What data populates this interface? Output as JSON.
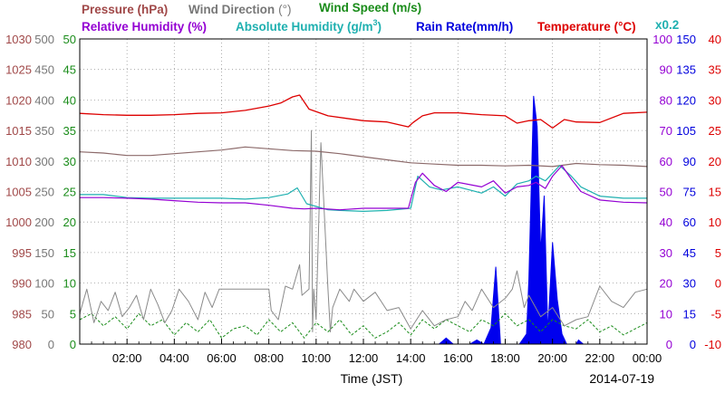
{
  "chart_data": {
    "type": "line",
    "date": "2014-07-19",
    "xlabel": "Time (JST)",
    "x_ticks": [
      "02:00",
      "04:00",
      "06:00",
      "08:00",
      "10:00",
      "12:00",
      "14:00",
      "16:00",
      "18:00",
      "20:00",
      "22:00",
      "00:00"
    ],
    "xlim_hours": [
      0,
      24
    ],
    "grid": true,
    "legend_placement": "top",
    "rain_scale_note": "x0.2",
    "legend": {
      "pressure": "Pressure (hPa)",
      "wind_dir": "Wind Direction",
      "wind_dir_unit": "(°)",
      "wind_speed": "Wind Speed (m/s)",
      "rh": "Relative Humidity (%)",
      "ah": "Absolute Humidity (g/m",
      "ah_sup": "3",
      "ah_close": ")",
      "rain": "Rain Rate(mm/h)",
      "temp": "Temperature (°C)"
    },
    "axes": {
      "pressure": {
        "min": 980,
        "max": 1030,
        "ticks": [
          "1030",
          "1025",
          "1020",
          "1015",
          "1010",
          "1005",
          "1000",
          "995",
          "990",
          "985",
          "980"
        ]
      },
      "wind_dir": {
        "min": 0,
        "max": 500,
        "ticks": [
          "500",
          "450",
          "400",
          "350",
          "300",
          "250",
          "200",
          "150",
          "100",
          "50",
          "0"
        ]
      },
      "wind_speed": {
        "min": 0,
        "max": 50,
        "ticks": [
          "50",
          "45",
          "40",
          "35",
          "30",
          "25",
          "20",
          "15",
          "10",
          "5",
          "0"
        ]
      },
      "rh": {
        "min": 0,
        "max": 100,
        "ticks": [
          "100",
          "90",
          "80",
          "70",
          "60",
          "50",
          "40",
          "30",
          "20",
          "10",
          "0"
        ]
      },
      "rain": {
        "min": 0,
        "max": 150,
        "ticks": [
          "150",
          "135",
          "120",
          "105",
          "90",
          "75",
          "60",
          "45",
          "30",
          "15",
          "0"
        ]
      },
      "temp": {
        "min": -10,
        "max": 40,
        "ticks": [
          "40",
          "35",
          "30",
          "25",
          "20",
          "15",
          "10",
          "5",
          "0",
          "-5",
          "-10"
        ]
      }
    },
    "series": [
      {
        "name": "Temperature (°C)",
        "axis": "temp",
        "x": [
          0,
          1,
          2,
          3,
          4,
          5,
          6,
          7,
          8,
          8.5,
          9,
          9.3,
          9.7,
          10.5,
          12,
          13,
          13.9,
          14.1,
          14.5,
          15,
          16,
          17,
          18,
          18.5,
          19,
          19.5,
          20,
          20.5,
          21,
          22,
          23,
          24
        ],
        "y": [
          27.8,
          27.6,
          27.5,
          27.5,
          27.6,
          27.8,
          27.9,
          28.3,
          29,
          29.5,
          30.5,
          30.8,
          28.5,
          27.4,
          26.6,
          26.4,
          25.6,
          26.3,
          27.4,
          27.9,
          27.9,
          27.6,
          27.4,
          26.2,
          26.6,
          26.8,
          25.4,
          26.8,
          26.4,
          26.3,
          27.8,
          28.0
        ]
      },
      {
        "name": "Pressure (hPa)",
        "axis": "pressure",
        "x": [
          0,
          1,
          2,
          3,
          4,
          5,
          6,
          7,
          8,
          9,
          10,
          11,
          12,
          13,
          14,
          15,
          16,
          17,
          18,
          19,
          20,
          21,
          22,
          23,
          24
        ],
        "y": [
          1011.5,
          1011.3,
          1010.9,
          1010.9,
          1011.2,
          1011.5,
          1011.8,
          1012.3,
          1012.0,
          1011.7,
          1011.6,
          1011.2,
          1010.7,
          1010.2,
          1009.7,
          1009.5,
          1009.3,
          1009.3,
          1009.2,
          1009.3,
          1009.1,
          1009.6,
          1009.4,
          1009.3,
          1009.1
        ]
      },
      {
        "name": "Absolute Humidity",
        "axis": "rh",
        "x": [
          0,
          1,
          2,
          3,
          4,
          5,
          6,
          7,
          8,
          8.8,
          9.2,
          9.6,
          10.5,
          11,
          12,
          13,
          14,
          14.3,
          14.8,
          15.3,
          16,
          17,
          17.5,
          18,
          18.5,
          19,
          19.3,
          19.7,
          20,
          20.3,
          20.8,
          21.2,
          22,
          23,
          24
        ],
        "y": [
          49,
          49,
          48,
          47.8,
          47.8,
          47.8,
          47.8,
          47.5,
          48,
          49.2,
          51.2,
          46,
          44,
          43.8,
          43.5,
          43.8,
          44.5,
          55,
          51.5,
          50.5,
          51.5,
          49.5,
          51.5,
          48.5,
          52.5,
          53.5,
          55,
          53.5,
          56,
          58.5,
          55,
          51.5,
          48.5,
          47.8,
          47.8
        ]
      },
      {
        "name": "Relative Humidity (%)",
        "axis": "rh",
        "x": [
          0,
          1,
          2,
          3,
          4,
          5,
          6,
          7,
          8,
          9,
          9.5,
          10,
          11,
          12,
          13,
          13.9,
          14.2,
          14.5,
          15,
          15.5,
          16,
          17,
          17.5,
          18,
          18.5,
          19,
          19.3,
          19.7,
          20,
          20.4,
          20.8,
          21.2,
          22,
          23,
          24
        ],
        "y": [
          48,
          48,
          47.8,
          47.5,
          47,
          46.5,
          46.3,
          46.3,
          45.5,
          44.5,
          44.3,
          44.5,
          44,
          44.5,
          44.5,
          44.5,
          53,
          56,
          52,
          50,
          53,
          51.5,
          53.5,
          49.5,
          51.5,
          52,
          53,
          51,
          55,
          58.5,
          54,
          50,
          47.2,
          46.5,
          46.3
        ]
      },
      {
        "name": "Wind Direction (°)",
        "axis": "wind_dir",
        "x": [
          0,
          0.3,
          0.6,
          0.9,
          1.2,
          1.5,
          1.8,
          2.1,
          2.4,
          2.7,
          3.0,
          3.3,
          3.6,
          3.9,
          4.2,
          4.6,
          5.0,
          5.3,
          5.6,
          5.9,
          6.0,
          8.0,
          8.1,
          8.4,
          8.7,
          9.0,
          9.3,
          9.4,
          9.7,
          9.8,
          9.85,
          9.9,
          10.0,
          10.2,
          10.5,
          10.6,
          10.7,
          11.0,
          11.4,
          11.6,
          12.0,
          12.5,
          13.0,
          13.5,
          14.0,
          14.5,
          15.0,
          15.5,
          16.0,
          16.3,
          16.6,
          17.0,
          17.5,
          18.0,
          18.3,
          18.5,
          18.8,
          19.0,
          19.5,
          20.0,
          20.5,
          21.0,
          21.5,
          22.0,
          22.5,
          23.0,
          23.5,
          24
        ],
        "y": [
          50,
          90,
          35,
          70,
          55,
          85,
          45,
          60,
          80,
          40,
          90,
          65,
          35,
          55,
          90,
          70,
          40,
          85,
          60,
          90,
          90,
          90,
          55,
          40,
          95,
          90,
          130,
          80,
          90,
          350,
          20,
          90,
          40,
          330,
          90,
          20,
          60,
          90,
          70,
          90,
          70,
          85,
          55,
          60,
          25,
          55,
          30,
          40,
          45,
          70,
          55,
          90,
          60,
          75,
          90,
          120,
          60,
          80,
          45,
          60,
          30,
          40,
          45,
          95,
          70,
          60,
          85,
          90
        ]
      },
      {
        "name": "Wind Speed (m/s)",
        "axis": "wind_speed",
        "x": [
          0,
          0.5,
          1,
          1.5,
          2,
          2.5,
          3,
          3.5,
          4,
          4.5,
          5,
          5.5,
          6,
          6.5,
          7,
          7.5,
          8,
          8.5,
          9,
          9.5,
          10,
          10.5,
          11,
          11.5,
          12,
          12.5,
          13,
          13.5,
          14,
          14.5,
          15,
          15.5,
          16,
          16.5,
          17,
          17.5,
          18,
          18.5,
          19,
          19.5,
          20,
          20.5,
          21,
          21.5,
          22,
          22.5,
          23,
          23.5,
          24
        ],
        "y": [
          4,
          5,
          3,
          4.5,
          2.5,
          5,
          3,
          4,
          1.5,
          3.5,
          2,
          4,
          1,
          2.5,
          3,
          1.5,
          4,
          2,
          3.5,
          1,
          3.5,
          2,
          4,
          1.5,
          3,
          1,
          2,
          3.5,
          1.5,
          4,
          2.5,
          4,
          3,
          2,
          4,
          3,
          5,
          3,
          4,
          2,
          4,
          3,
          2.5,
          4,
          2,
          3,
          1.5,
          2.5,
          3.5
        ]
      },
      {
        "name": "Rain Rate(mm/h)",
        "axis": "rain",
        "x": [
          0,
          15,
          15.2,
          15.5,
          15.8,
          16.5,
          16.8,
          17.1,
          17.4,
          17.6,
          17.8,
          18.0,
          18.2,
          18.6,
          18.9,
          19.0,
          19.2,
          19.35,
          19.5,
          19.65,
          19.8,
          20.0,
          20.2,
          20.4,
          20.6,
          21.0,
          21.1,
          21.3,
          21.5,
          22,
          24
        ],
        "y": [
          0,
          0,
          0,
          3,
          0,
          0,
          2,
          0,
          8,
          38,
          0,
          0,
          0,
          0,
          5,
          32,
          122,
          107,
          45,
          73,
          6,
          50,
          22,
          5,
          0,
          0,
          2,
          0,
          0,
          0,
          0
        ]
      }
    ]
  }
}
